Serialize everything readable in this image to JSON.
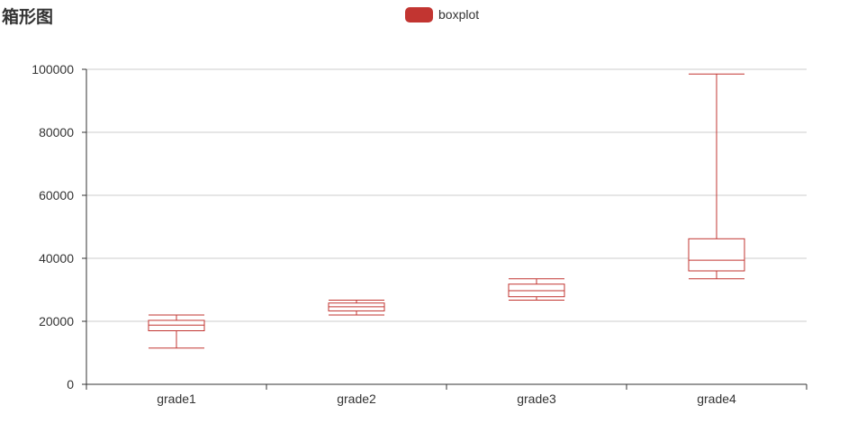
{
  "chart_data": {
    "type": "boxplot",
    "title": "箱形图",
    "legend": {
      "position": "top-center",
      "entries": [
        "boxplot"
      ]
    },
    "categories": [
      "grade1",
      "grade2",
      "grade3",
      "grade4"
    ],
    "series": [
      {
        "name": "boxplot",
        "color": "#c23531",
        "boxes": [
          {
            "min": 11500,
            "q1": 17000,
            "median": 18800,
            "q3": 20300,
            "max": 22000
          },
          {
            "min": 22000,
            "q1": 23300,
            "median": 24600,
            "q3": 25800,
            "max": 26700
          },
          {
            "min": 26700,
            "q1": 27800,
            "median": 29700,
            "q3": 31800,
            "max": 33500
          },
          {
            "min": 33500,
            "q1": 36000,
            "median": 39400,
            "q3": 46200,
            "max": 98500
          }
        ]
      }
    ],
    "yTicks": [
      "0",
      "20000",
      "40000",
      "60000",
      "80000",
      "100000"
    ],
    "ylim": [
      0,
      100000
    ],
    "grid": true,
    "colors": {
      "series": "#c23531",
      "grid": "#cccccc",
      "axis": "#333333",
      "text": "#333333"
    }
  }
}
